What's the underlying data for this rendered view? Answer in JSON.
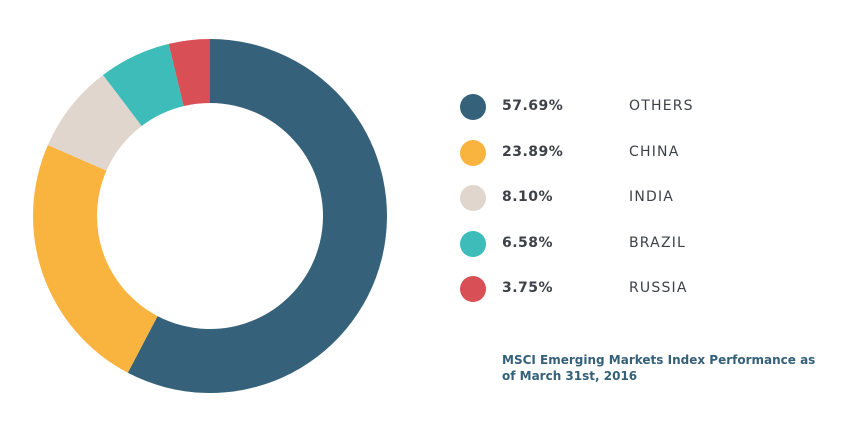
{
  "chart_data": {
    "type": "pie",
    "style": "donut",
    "categories": [
      "OTHERS",
      "CHINA",
      "INDIA",
      "BRAZIL",
      "RUSSIA"
    ],
    "values": [
      57.69,
      23.89,
      8.1,
      6.58,
      3.75
    ],
    "labels": [
      "57.69%",
      "23.89%",
      "8.10%",
      "6.58%",
      "3.75%"
    ],
    "colors": [
      "#35627a",
      "#f9b43f",
      "#e0d6ce",
      "#3dbcb9",
      "#d84f55"
    ],
    "legend_position": "right",
    "caption": "MSCI Emerging Markets Index Performance as of March 31st, 2016"
  }
}
